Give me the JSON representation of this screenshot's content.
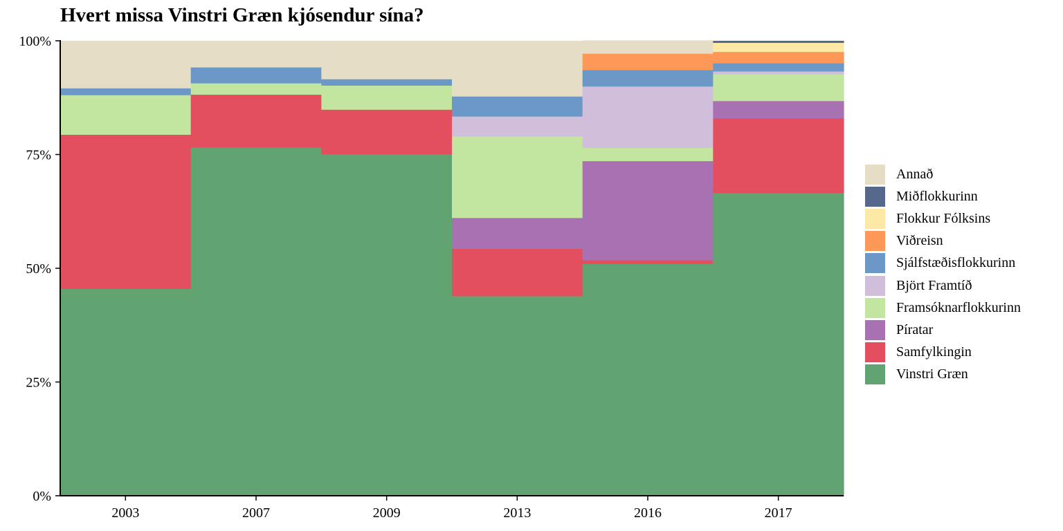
{
  "chart_data": {
    "type": "bar",
    "stacked": true,
    "title": "Hvert missa Vinstri Græn kjósendur sína?",
    "xlabel": "",
    "ylabel": "",
    "ylim": [
      0,
      100
    ],
    "y_ticks": [
      "0%",
      "25%",
      "50%",
      "75%",
      "100%"
    ],
    "grid": false,
    "legend_position": "right",
    "categories": [
      "2003",
      "2007",
      "2009",
      "2013",
      "2016",
      "2017"
    ],
    "series": [
      {
        "name": "Vinstri Græn",
        "color": "#62a372",
        "values": [
          45.5,
          76.6,
          75.1,
          43.9,
          51.0,
          66.6
        ]
      },
      {
        "name": "Samfylkingin",
        "color": "#e34f5e",
        "values": [
          33.9,
          11.6,
          9.8,
          10.4,
          0.8,
          16.4
        ]
      },
      {
        "name": "Píratar",
        "color": "#a872b2",
        "values": [
          0,
          0,
          0,
          6.8,
          21.8,
          3.8
        ]
      },
      {
        "name": "Framsóknarflokkurinn",
        "color": "#c2e69f",
        "values": [
          8.7,
          2.5,
          5.3,
          17.9,
          2.9,
          5.9
        ]
      },
      {
        "name": "Björt Framtíð",
        "color": "#d1bedb",
        "values": [
          0,
          0,
          0,
          4.4,
          13.5,
          0.6
        ]
      },
      {
        "name": "Sjálfstæðisflokkurinn",
        "color": "#6b98c6",
        "values": [
          1.5,
          3.5,
          1.4,
          4.4,
          3.6,
          1.8
        ]
      },
      {
        "name": "Viðreisn",
        "color": "#fd9858",
        "values": [
          0,
          0,
          0,
          0,
          3.6,
          2.5
        ]
      },
      {
        "name": "Flokkur Fólksins",
        "color": "#fde8a6",
        "values": [
          0,
          0,
          0,
          0,
          0,
          2.0
        ]
      },
      {
        "name": "Miðflokkurinn",
        "color": "#57688d",
        "values": [
          0,
          0,
          0,
          0,
          0,
          0.4
        ]
      },
      {
        "name": "Annað",
        "color": "#e6ddc7",
        "values": [
          10.4,
          5.8,
          8.4,
          12.2,
          2.9,
          0.0
        ]
      }
    ]
  }
}
